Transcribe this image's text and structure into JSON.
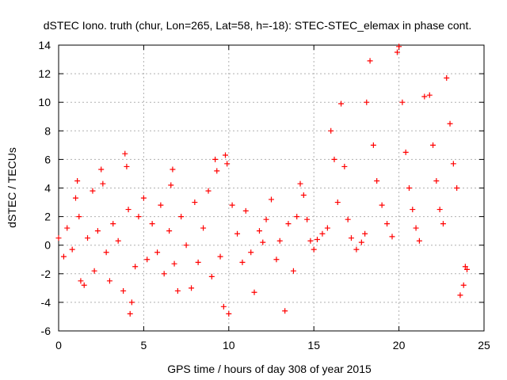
{
  "chart_data": {
    "type": "scatter",
    "title": "dSTEC Iono. truth (chur, Lon=265, Lat=58, h=-18): STEC-STEC_elemax in phase cont.",
    "xlabel": "GPS time / hours of day 308 of year 2015",
    "ylabel": "dSTEC  / TECUs",
    "xlim": [
      0,
      25
    ],
    "ylim": [
      -6,
      14
    ],
    "xticks": [
      "0",
      "5",
      "10",
      "15",
      "20",
      "25"
    ],
    "yticks": [
      "-6",
      "-4",
      "-2",
      "0",
      "2",
      "4",
      "6",
      "8",
      "10",
      "12",
      "14"
    ],
    "grid": true,
    "marker": "+",
    "colors": {
      "series": "#ff0000",
      "grid": "#b0b0b0",
      "axis": "#000000"
    },
    "series": [
      {
        "name": "",
        "points": [
          [
            0.0,
            0.5
          ],
          [
            0.3,
            -0.8
          ],
          [
            0.5,
            1.2
          ],
          [
            0.8,
            -0.3
          ],
          [
            1.0,
            3.3
          ],
          [
            1.1,
            4.5
          ],
          [
            1.2,
            2.0
          ],
          [
            1.3,
            -2.5
          ],
          [
            1.5,
            -2.8
          ],
          [
            1.7,
            0.5
          ],
          [
            2.0,
            3.8
          ],
          [
            2.1,
            -1.8
          ],
          [
            2.3,
            1.0
          ],
          [
            2.5,
            5.3
          ],
          [
            2.6,
            4.3
          ],
          [
            2.8,
            -0.5
          ],
          [
            3.0,
            -2.5
          ],
          [
            3.2,
            1.5
          ],
          [
            3.5,
            0.3
          ],
          [
            3.8,
            -3.2
          ],
          [
            3.9,
            6.4
          ],
          [
            4.0,
            5.5
          ],
          [
            4.1,
            2.5
          ],
          [
            4.2,
            -4.8
          ],
          [
            4.3,
            -4.0
          ],
          [
            4.5,
            -1.5
          ],
          [
            4.7,
            2.0
          ],
          [
            5.0,
            3.3
          ],
          [
            5.2,
            -1.0
          ],
          [
            5.5,
            1.5
          ],
          [
            5.8,
            -0.5
          ],
          [
            6.0,
            2.8
          ],
          [
            6.2,
            -2.0
          ],
          [
            6.5,
            1.0
          ],
          [
            6.6,
            4.2
          ],
          [
            6.7,
            5.3
          ],
          [
            6.8,
            -1.3
          ],
          [
            7.0,
            -3.2
          ],
          [
            7.2,
            2.0
          ],
          [
            7.5,
            0.0
          ],
          [
            7.8,
            -3.0
          ],
          [
            8.0,
            3.0
          ],
          [
            8.2,
            -1.2
          ],
          [
            8.5,
            1.2
          ],
          [
            8.8,
            3.8
          ],
          [
            9.0,
            -2.2
          ],
          [
            9.2,
            6.0
          ],
          [
            9.3,
            5.2
          ],
          [
            9.5,
            -0.8
          ],
          [
            9.7,
            -4.3
          ],
          [
            9.8,
            6.3
          ],
          [
            9.9,
            5.7
          ],
          [
            10.0,
            -4.8
          ],
          [
            10.2,
            2.8
          ],
          [
            10.5,
            0.8
          ],
          [
            10.8,
            -1.2
          ],
          [
            11.0,
            2.4
          ],
          [
            11.3,
            -0.5
          ],
          [
            11.5,
            -3.3
          ],
          [
            11.8,
            1.0
          ],
          [
            12.0,
            0.2
          ],
          [
            12.2,
            1.8
          ],
          [
            12.5,
            3.2
          ],
          [
            12.8,
            -1.0
          ],
          [
            13.0,
            0.3
          ],
          [
            13.3,
            -4.6
          ],
          [
            13.5,
            1.5
          ],
          [
            13.8,
            -1.8
          ],
          [
            14.0,
            2.0
          ],
          [
            14.2,
            4.3
          ],
          [
            14.4,
            3.5
          ],
          [
            14.6,
            1.8
          ],
          [
            14.8,
            0.3
          ],
          [
            15.0,
            -0.3
          ],
          [
            15.2,
            0.4
          ],
          [
            15.5,
            0.8
          ],
          [
            15.8,
            1.2
          ],
          [
            16.0,
            8.0
          ],
          [
            16.2,
            6.0
          ],
          [
            16.4,
            3.0
          ],
          [
            16.6,
            9.9
          ],
          [
            16.8,
            5.5
          ],
          [
            17.0,
            1.8
          ],
          [
            17.2,
            0.5
          ],
          [
            17.5,
            -0.3
          ],
          [
            17.8,
            0.2
          ],
          [
            18.0,
            0.8
          ],
          [
            18.3,
            12.9
          ],
          [
            18.1,
            10.0
          ],
          [
            18.5,
            7.0
          ],
          [
            18.7,
            4.5
          ],
          [
            19.0,
            2.8
          ],
          [
            19.3,
            1.5
          ],
          [
            19.6,
            0.6
          ],
          [
            19.9,
            13.5
          ],
          [
            20.0,
            13.9
          ],
          [
            20.2,
            10.0
          ],
          [
            20.4,
            6.5
          ],
          [
            20.6,
            4.0
          ],
          [
            20.8,
            2.5
          ],
          [
            21.0,
            1.2
          ],
          [
            21.2,
            0.3
          ],
          [
            21.5,
            10.4
          ],
          [
            21.8,
            10.5
          ],
          [
            22.0,
            7.0
          ],
          [
            22.2,
            4.5
          ],
          [
            22.4,
            2.5
          ],
          [
            22.6,
            1.5
          ],
          [
            22.8,
            11.7
          ],
          [
            23.0,
            8.5
          ],
          [
            23.2,
            5.7
          ],
          [
            23.4,
            4.0
          ],
          [
            23.6,
            -3.5
          ],
          [
            23.8,
            -2.8
          ],
          [
            23.9,
            -1.5
          ],
          [
            24.0,
            -1.7
          ]
        ]
      }
    ]
  }
}
